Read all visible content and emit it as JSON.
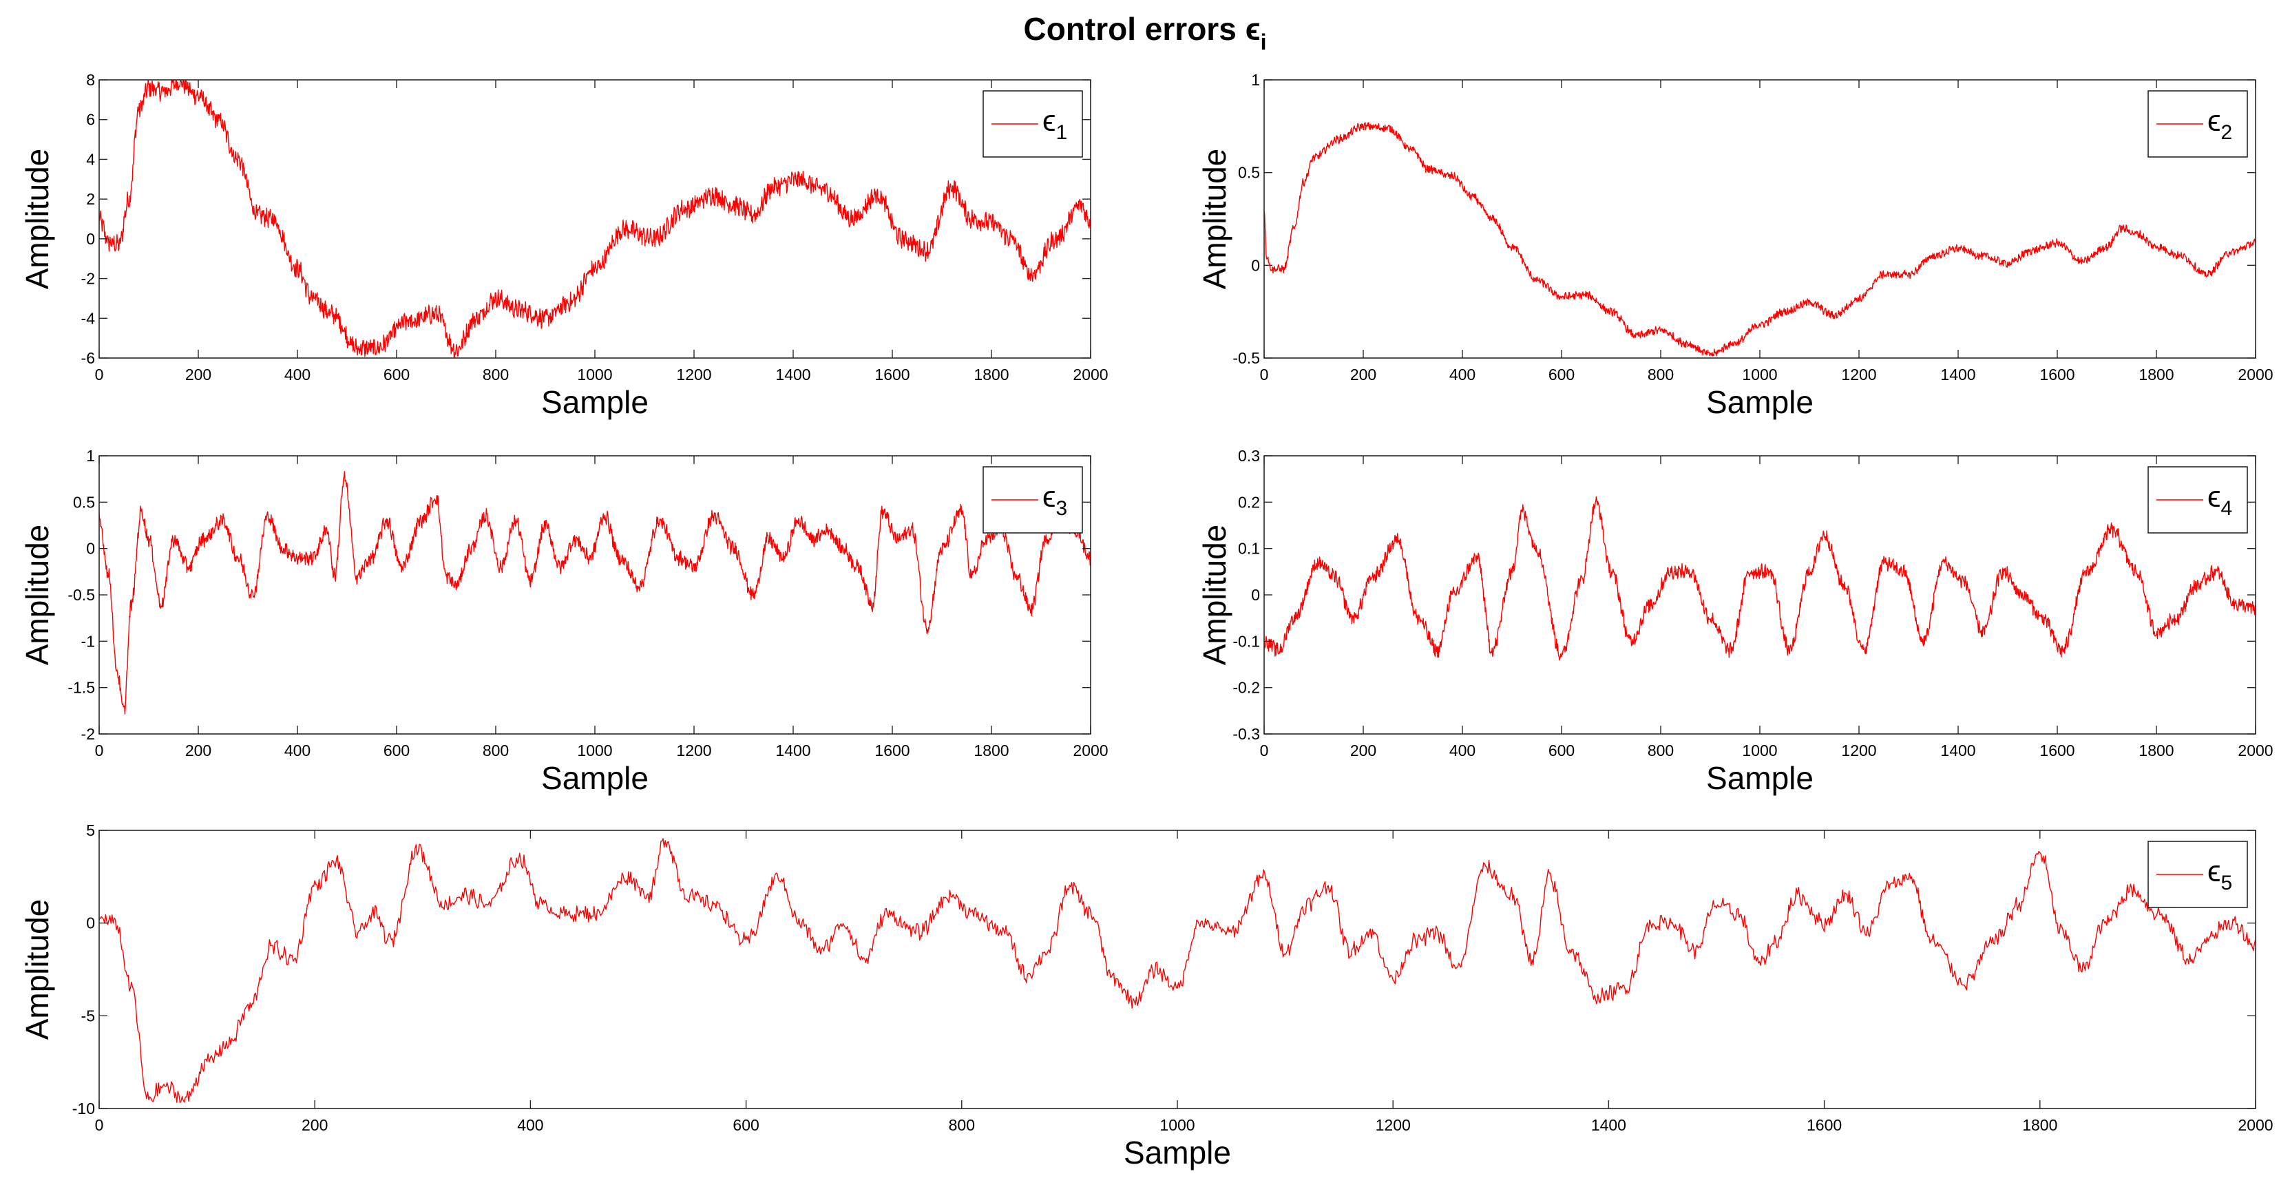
{
  "figure": {
    "title_prefix": "Control errors ",
    "title_symbol": "ϵ",
    "title_subscript": "i"
  },
  "colors": {
    "series": "#ff0000",
    "axis": "#262626",
    "tick_text": "#000000",
    "background": "#ffffff"
  },
  "chart_data": [
    {
      "type": "line",
      "title": "",
      "xlabel": "Sample",
      "ylabel": "Amplitude",
      "xlim": [
        0,
        2000
      ],
      "ylim": [
        -6,
        8
      ],
      "xticks": [
        0,
        200,
        400,
        600,
        800,
        1000,
        1200,
        1400,
        1600,
        1800,
        2000
      ],
      "yticks": [
        -6,
        -4,
        -2,
        0,
        2,
        4,
        6,
        8
      ],
      "ytick_labels": [
        "-6",
        "-4",
        "-2",
        "0",
        "2",
        "4",
        "6",
        "8"
      ],
      "legend": {
        "symbol": "ϵ",
        "subscript": "1",
        "location": "top-right"
      },
      "noise": 0.06,
      "series": [
        {
          "name": "ϵ1",
          "x": [
            0,
            20,
            40,
            60,
            80,
            100,
            130,
            160,
            200,
            240,
            280,
            320,
            350,
            400,
            430,
            470,
            520,
            560,
            620,
            680,
            720,
            760,
            800,
            850,
            900,
            950,
            1000,
            1060,
            1120,
            1180,
            1240,
            1280,
            1320,
            1360,
            1410,
            1460,
            1520,
            1570,
            1620,
            1670,
            1720,
            1760,
            1800,
            1840,
            1880,
            1930,
            1980,
            2000
          ],
          "y": [
            1.0,
            -0.2,
            -0.3,
            2.0,
            6.5,
            7.6,
            7.4,
            7.9,
            7.2,
            6.0,
            4.0,
            1.2,
            1.0,
            -1.5,
            -3.0,
            -3.8,
            -5.5,
            -5.5,
            -4.2,
            -3.8,
            -5.6,
            -4.0,
            -3.0,
            -3.6,
            -4.0,
            -3.2,
            -1.5,
            0.5,
            0.0,
            1.5,
            2.2,
            1.7,
            1.2,
            2.6,
            3.0,
            2.5,
            1.0,
            2.2,
            0.0,
            -0.6,
            2.6,
            1.0,
            0.8,
            0.0,
            -1.8,
            0.0,
            1.7,
            0.8
          ]
        }
      ]
    },
    {
      "type": "line",
      "title": "",
      "xlabel": "Sample",
      "ylabel": "Amplitude",
      "xlim": [
        0,
        2000
      ],
      "ylim": [
        -0.5,
        1
      ],
      "xticks": [
        0,
        200,
        400,
        600,
        800,
        1000,
        1200,
        1400,
        1600,
        1800,
        2000
      ],
      "yticks": [
        -0.5,
        0,
        0.5,
        1
      ],
      "ytick_labels": [
        "-0.5",
        "0",
        "0.5",
        "1"
      ],
      "legend": {
        "symbol": "ϵ",
        "subscript": "2",
        "location": "top-right"
      },
      "noise": 0.025,
      "series": [
        {
          "name": "ϵ2",
          "x": [
            0,
            5,
            15,
            40,
            60,
            80,
            100,
            150,
            200,
            250,
            300,
            330,
            380,
            420,
            460,
            500,
            550,
            600,
            650,
            700,
            750,
            800,
            850,
            900,
            950,
            1000,
            1050,
            1100,
            1150,
            1200,
            1250,
            1300,
            1350,
            1400,
            1450,
            1500,
            1550,
            1600,
            1650,
            1700,
            1730,
            1760,
            1800,
            1850,
            1900,
            1950,
            2000
          ],
          "y": [
            0.3,
            0.05,
            -0.02,
            -0.02,
            0.2,
            0.45,
            0.58,
            0.68,
            0.75,
            0.74,
            0.62,
            0.52,
            0.48,
            0.37,
            0.25,
            0.1,
            -0.08,
            -0.17,
            -0.16,
            -0.25,
            -0.38,
            -0.35,
            -0.42,
            -0.48,
            -0.42,
            -0.32,
            -0.25,
            -0.2,
            -0.27,
            -0.18,
            -0.05,
            -0.05,
            0.05,
            0.09,
            0.05,
            0.01,
            0.08,
            0.12,
            0.02,
            0.1,
            0.2,
            0.17,
            0.1,
            0.05,
            -0.05,
            0.07,
            0.12
          ]
        }
      ]
    },
    {
      "type": "line",
      "title": "",
      "xlabel": "Sample",
      "ylabel": "Amplitude",
      "xlim": [
        0,
        2000
      ],
      "ylim": [
        -2,
        1
      ],
      "xticks": [
        0,
        200,
        400,
        600,
        800,
        1000,
        1200,
        1400,
        1600,
        1800,
        2000
      ],
      "yticks": [
        -2,
        -1.5,
        -1,
        -0.5,
        0,
        0.5,
        1
      ],
      "ytick_labels": [
        "-2",
        "-1.5",
        "-1",
        "-0.5",
        "0",
        "0.5",
        "1"
      ],
      "legend": {
        "symbol": "ϵ",
        "subscript": "3",
        "location": "top-right"
      },
      "noise": 0.045,
      "series": [
        {
          "name": "ϵ3",
          "x": [
            0,
            20,
            35,
            50,
            65,
            85,
            100,
            125,
            150,
            180,
            210,
            250,
            280,
            310,
            340,
            370,
            400,
            430,
            460,
            475,
            495,
            520,
            550,
            580,
            610,
            650,
            680,
            700,
            720,
            750,
            780,
            810,
            840,
            870,
            900,
            930,
            960,
            990,
            1020,
            1050,
            1090,
            1130,
            1170,
            1200,
            1240,
            1280,
            1320,
            1350,
            1380,
            1410,
            1440,
            1470,
            1500,
            1530,
            1560,
            1580,
            1610,
            1640,
            1670,
            1700,
            1740,
            1760,
            1790,
            1820,
            1850,
            1880,
            1910,
            1940,
            1970,
            2000
          ],
          "y": [
            0.3,
            -0.3,
            -1.3,
            -1.75,
            -0.6,
            0.4,
            0.1,
            -0.6,
            0.1,
            -0.2,
            0.1,
            0.3,
            -0.1,
            -0.5,
            0.35,
            0.0,
            -0.1,
            -0.1,
            0.2,
            -0.3,
            0.75,
            -0.3,
            -0.1,
            0.3,
            -0.2,
            0.3,
            0.55,
            -0.3,
            -0.4,
            0.0,
            0.35,
            -0.2,
            0.3,
            -0.35,
            0.25,
            -0.2,
            0.1,
            -0.1,
            0.35,
            -0.1,
            -0.4,
            0.3,
            -0.1,
            -0.2,
            0.35,
            0.0,
            -0.5,
            0.1,
            -0.1,
            0.3,
            0.1,
            0.2,
            0.0,
            -0.2,
            -0.6,
            0.4,
            0.1,
            0.2,
            -0.85,
            0.0,
            0.4,
            -0.3,
            0.1,
            0.2,
            -0.3,
            -0.65,
            0.1,
            0.3,
            0.2,
            -0.1
          ]
        }
      ]
    },
    {
      "type": "line",
      "title": "",
      "xlabel": "Sample",
      "ylabel": "Amplitude",
      "xlim": [
        0,
        2000
      ],
      "ylim": [
        -0.3,
        0.3
      ],
      "xticks": [
        0,
        200,
        400,
        600,
        800,
        1000,
        1200,
        1400,
        1600,
        1800,
        2000
      ],
      "yticks": [
        -0.3,
        -0.2,
        -0.1,
        0,
        0.1,
        0.2,
        0.3
      ],
      "ytick_labels": [
        "-0.3",
        "-0.2",
        "-0.1",
        "0",
        "0.1",
        "0.2",
        "0.3"
      ],
      "legend": {
        "symbol": "ϵ",
        "subscript": "4",
        "location": "top-right"
      },
      "noise": 0.045,
      "series": [
        {
          "name": "ϵ4",
          "x": [
            0,
            30,
            60,
            110,
            140,
            180,
            220,
            270,
            310,
            350,
            380,
            430,
            460,
            500,
            520,
            550,
            600,
            640,
            670,
            700,
            740,
            780,
            820,
            860,
            900,
            940,
            980,
            1020,
            1060,
            1100,
            1130,
            1170,
            1210,
            1250,
            1290,
            1330,
            1370,
            1410,
            1450,
            1490,
            1530,
            1570,
            1610,
            1660,
            1710,
            1760,
            1800,
            1840,
            1880,
            1920,
            1960,
            2000
          ],
          "y": [
            -0.1,
            -0.12,
            -0.05,
            0.07,
            0.04,
            -0.05,
            0.04,
            0.12,
            -0.05,
            -0.12,
            0.0,
            0.08,
            -0.12,
            0.05,
            0.18,
            0.1,
            -0.13,
            0.03,
            0.2,
            0.05,
            -0.1,
            -0.02,
            0.05,
            0.05,
            -0.05,
            -0.12,
            0.05,
            0.05,
            -0.12,
            0.05,
            0.13,
            0.02,
            -0.12,
            0.07,
            0.05,
            -0.1,
            0.07,
            0.03,
            -0.08,
            0.05,
            0.0,
            -0.05,
            -0.12,
            0.05,
            0.14,
            0.05,
            -0.08,
            -0.05,
            0.02,
            0.05,
            -0.02,
            -0.03
          ]
        }
      ]
    },
    {
      "type": "line",
      "title": "",
      "xlabel": "Sample",
      "ylabel": "Amplitude",
      "xlim": [
        0,
        2000
      ],
      "ylim": [
        -10,
        5
      ],
      "xticks": [
        0,
        200,
        400,
        600,
        800,
        1000,
        1200,
        1400,
        1600,
        1800,
        2000
      ],
      "yticks": [
        -10,
        -5,
        0,
        5
      ],
      "ytick_labels": [
        "-10",
        "-5",
        "0",
        "5"
      ],
      "legend": {
        "symbol": "ϵ",
        "subscript": "5",
        "location": "top-right"
      },
      "noise": 0.05,
      "series": [
        {
          "name": "ϵ5",
          "x": [
            0,
            15,
            30,
            45,
            60,
            80,
            100,
            120,
            140,
            160,
            180,
            200,
            220,
            240,
            255,
            270,
            295,
            320,
            340,
            360,
            390,
            410,
            430,
            460,
            490,
            510,
            525,
            545,
            570,
            600,
            630,
            650,
            670,
            690,
            710,
            730,
            760,
            790,
            810,
            840,
            860,
            880,
            900,
            920,
            940,
            960,
            980,
            1000,
            1020,
            1050,
            1080,
            1100,
            1120,
            1140,
            1160,
            1180,
            1200,
            1220,
            1240,
            1260,
            1285,
            1310,
            1330,
            1345,
            1365,
            1390,
            1415,
            1440,
            1460,
            1480,
            1500,
            1520,
            1540,
            1555,
            1575,
            1600,
            1620,
            1640,
            1660,
            1680,
            1700,
            1730,
            1760,
            1780,
            1800,
            1820,
            1840,
            1860,
            1885,
            1910,
            1940,
            1960,
            1980,
            2000
          ],
          "y": [
            0.3,
            0.0,
            -3.5,
            -9.5,
            -8.8,
            -9.5,
            -7.5,
            -6.5,
            -4.5,
            -1.3,
            -2.0,
            2.0,
            3.3,
            -0.5,
            0.5,
            -1.0,
            4.0,
            1.0,
            1.5,
            1.0,
            3.5,
            1.0,
            0.5,
            0.5,
            2.5,
            1.5,
            4.5,
            1.5,
            1.0,
            -1.0,
            2.5,
            0.0,
            -1.5,
            0.0,
            -2.0,
            0.5,
            -0.5,
            1.5,
            0.5,
            -0.5,
            -2.8,
            -1.5,
            2.0,
            0.5,
            -3.0,
            -4.2,
            -2.5,
            -3.5,
            0.0,
            -0.5,
            2.5,
            -1.5,
            1.0,
            2.0,
            -1.5,
            -0.5,
            -3.0,
            -1.0,
            -0.5,
            -2.5,
            3.0,
            1.5,
            -2.0,
            2.5,
            -1.5,
            -4.0,
            -3.5,
            0.0,
            0.0,
            -1.5,
            1.0,
            0.5,
            -2.2,
            -1.0,
            1.5,
            0.0,
            1.5,
            -0.5,
            2.0,
            2.5,
            -1.0,
            -3.2,
            -0.8,
            1.0,
            3.8,
            -0.5,
            -2.5,
            0.0,
            1.8,
            0.5,
            -2.0,
            -0.5,
            0.0,
            -1.2
          ]
        }
      ]
    }
  ]
}
